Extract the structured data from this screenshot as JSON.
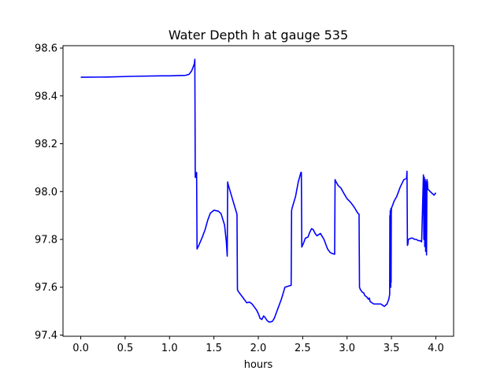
{
  "chart_data": {
    "type": "line",
    "title": "Water Depth h at gauge 535",
    "xlabel": "hours",
    "ylabel": "",
    "xlim": [
      -0.2,
      4.2
    ],
    "ylim": [
      97.395,
      98.61
    ],
    "xticks": [
      0.0,
      0.5,
      1.0,
      1.5,
      2.0,
      2.5,
      3.0,
      3.5,
      4.0
    ],
    "xtick_labels": [
      "0.0",
      "0.5",
      "1.0",
      "1.5",
      "2.0",
      "2.5",
      "3.0",
      "3.5",
      "4.0"
    ],
    "yticks": [
      97.4,
      97.6,
      97.8,
      98.0,
      98.2,
      98.4,
      98.6
    ],
    "ytick_labels": [
      "97.4",
      "97.6",
      "97.8",
      "98.0",
      "98.2",
      "98.4",
      "98.6"
    ],
    "grid": false,
    "series": [
      {
        "color": "#0000ff",
        "x": [
          0.0,
          0.3,
          0.6,
          0.9,
          1.0,
          1.1,
          1.18,
          1.22,
          1.25,
          1.28,
          1.285,
          1.29,
          1.295,
          1.3,
          1.305,
          1.31,
          1.33,
          1.37,
          1.4,
          1.43,
          1.46,
          1.5,
          1.55,
          1.58,
          1.62,
          1.64,
          1.65,
          1.655,
          1.66,
          1.7,
          1.74,
          1.76,
          1.765,
          1.77,
          1.8,
          1.83,
          1.85,
          1.87,
          1.9,
          1.93,
          1.96,
          1.98,
          2.0,
          2.02,
          2.04,
          2.06,
          2.08,
          2.1,
          2.12,
          2.14,
          2.16,
          2.18,
          2.2,
          2.22,
          2.24,
          2.26,
          2.3,
          2.34,
          2.37,
          2.375,
          2.38,
          2.42,
          2.45,
          2.48,
          2.485,
          2.49,
          2.51,
          2.53,
          2.56,
          2.58,
          2.6,
          2.62,
          2.64,
          2.66,
          2.68,
          2.7,
          2.74,
          2.78,
          2.81,
          2.84,
          2.86,
          2.865,
          2.87,
          2.9,
          2.93,
          2.96,
          3.0,
          3.04,
          3.08,
          3.12,
          3.135,
          3.14,
          3.15,
          3.17,
          3.19,
          3.2,
          3.22,
          3.24,
          3.25,
          3.26,
          3.3,
          3.34,
          3.38,
          3.42,
          3.45,
          3.47,
          3.48,
          3.482,
          3.484,
          3.486,
          3.488,
          3.49,
          3.492,
          3.494,
          3.496,
          3.498,
          3.5,
          3.53,
          3.56,
          3.6,
          3.64,
          3.67,
          3.675,
          3.68,
          3.685,
          3.69,
          3.72,
          3.74,
          3.76,
          3.78,
          3.8,
          3.82,
          3.84,
          3.86,
          3.865,
          3.87,
          3.875,
          3.88,
          3.885,
          3.89,
          3.895,
          3.9,
          3.905,
          3.91,
          3.95,
          3.98,
          4.0
        ],
        "y": [
          98.478,
          98.479,
          98.482,
          98.484,
          98.484,
          98.485,
          98.486,
          98.49,
          98.505,
          98.535,
          98.553,
          98.06,
          98.072,
          98.058,
          98.08,
          97.76,
          97.775,
          97.81,
          97.84,
          97.88,
          97.91,
          97.922,
          97.918,
          97.908,
          97.86,
          97.79,
          97.73,
          98.04,
          98.03,
          97.98,
          97.93,
          97.905,
          97.59,
          97.585,
          97.57,
          97.555,
          97.545,
          97.535,
          97.538,
          97.53,
          97.515,
          97.505,
          97.49,
          97.47,
          97.465,
          97.48,
          97.472,
          97.46,
          97.455,
          97.455,
          97.458,
          97.47,
          97.49,
          97.51,
          97.53,
          97.55,
          97.6,
          97.605,
          97.608,
          97.92,
          97.93,
          97.98,
          98.04,
          98.08,
          98.08,
          97.768,
          97.785,
          97.805,
          97.81,
          97.83,
          97.845,
          97.84,
          97.825,
          97.815,
          97.82,
          97.825,
          97.8,
          97.76,
          97.745,
          97.74,
          97.738,
          98.05,
          98.045,
          98.025,
          98.015,
          97.995,
          97.97,
          97.955,
          97.935,
          97.91,
          97.905,
          97.6,
          97.59,
          97.58,
          97.575,
          97.565,
          97.56,
          97.55,
          97.555,
          97.54,
          97.53,
          97.53,
          97.53,
          97.52,
          97.53,
          97.55,
          97.57,
          97.9,
          97.6,
          97.92,
          97.62,
          97.91,
          97.6,
          97.93,
          97.62,
          97.91,
          97.93,
          97.96,
          97.98,
          98.02,
          98.05,
          98.055,
          98.085,
          97.775,
          97.78,
          97.8,
          97.805,
          97.805,
          97.8,
          97.8,
          97.795,
          97.795,
          97.79,
          98.07,
          97.8,
          98.06,
          97.77,
          98.05,
          97.75,
          98.04,
          97.735,
          98.05,
          98.04,
          98.01,
          97.995,
          97.985,
          97.995
        ]
      }
    ]
  }
}
